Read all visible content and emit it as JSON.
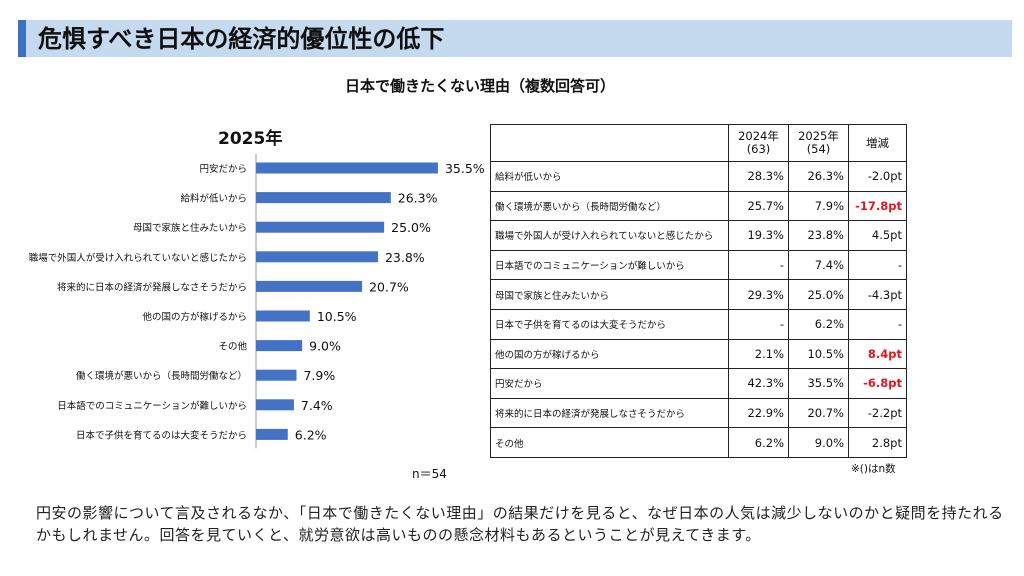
{
  "header": {
    "title": "危惧すべき日本の経済的優位性の低下"
  },
  "subtitle": "日本で働きたくない理由（複数回答可）",
  "chart_data": {
    "type": "bar",
    "orientation": "horizontal",
    "title": "2025年",
    "categories": [
      "円安だから",
      "給料が低いから",
      "母国で家族と住みたいから",
      "職場で外国人が受け入れられていないと感じたから",
      "将来的に日本の経済が発展しなさそうだから",
      "他の国の方が稼げるから",
      "その他",
      "働く環境が悪いから（長時間労働など）",
      "日本語でのコミュニケーションが難しいから",
      "日本で子供を育てるのは大変そうだから"
    ],
    "values": [
      35.5,
      26.3,
      25.0,
      23.8,
      20.7,
      10.5,
      9.0,
      7.9,
      7.4,
      6.2
    ],
    "value_labels": [
      "35.5%",
      "26.3%",
      "25.0%",
      "23.8%",
      "20.7%",
      "10.5%",
      "9.0%",
      "7.9%",
      "7.4%",
      "6.2%"
    ],
    "bar_color": "#4472c4",
    "note": "n＝54"
  },
  "table": {
    "headers": {
      "reason": "",
      "y2024": "2024年\n(63)",
      "y2025": "2025年\n(54)",
      "diff": "増減"
    },
    "rows": [
      {
        "reason": "給料が低いから",
        "y2024": "28.3%",
        "y2025": "26.3%",
        "diff": "-2.0pt",
        "highlight": false
      },
      {
        "reason": "働く環境が悪いから（長時間労働など）",
        "y2024": "25.7%",
        "y2025": "7.9%",
        "diff": "-17.8pt",
        "highlight": true
      },
      {
        "reason": "職場で外国人が受け入れられていないと感じたから",
        "y2024": "19.3%",
        "y2025": "23.8%",
        "diff": "4.5pt",
        "highlight": false
      },
      {
        "reason": "日本語でのコミュニケーションが難しいから",
        "y2024": "-",
        "y2025": "7.4%",
        "diff": "-",
        "highlight": false
      },
      {
        "reason": "母国で家族と住みたいから",
        "y2024": "29.3%",
        "y2025": "25.0%",
        "diff": "-4.3pt",
        "highlight": false
      },
      {
        "reason": "日本で子供を育てるのは大変そうだから",
        "y2024": "-",
        "y2025": "6.2%",
        "diff": "-",
        "highlight": false
      },
      {
        "reason": "他の国の方が稼げるから",
        "y2024": "2.1%",
        "y2025": "10.5%",
        "diff": "8.4pt",
        "highlight": true
      },
      {
        "reason": "円安だから",
        "y2024": "42.3%",
        "y2025": "35.5%",
        "diff": "-6.8pt",
        "highlight": true
      },
      {
        "reason": "将来的に日本の経済が発展しなさそうだから",
        "y2024": "22.9%",
        "y2025": "20.7%",
        "diff": "-2.2pt",
        "highlight": false
      },
      {
        "reason": "その他",
        "y2024": "6.2%",
        "y2025": "9.0%",
        "diff": "2.8pt",
        "highlight": false
      }
    ],
    "note": "※()はn数",
    "highlight_color": "#e0161d"
  },
  "body_text": "円安の影響について言及されるなか、「日本で働きたくない理由」の結果だけを見ると、なぜ日本の人気は減少しないのかと疑問を持たれるかもしれません。回答を見ていくと、就労意欲は高いものの懸念材料もあるということが見えてきます。"
}
